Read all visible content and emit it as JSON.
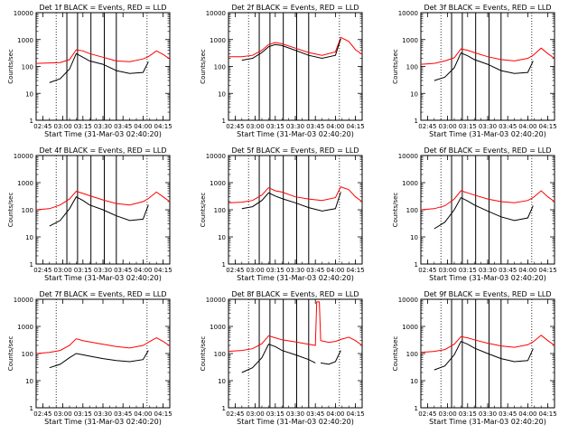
{
  "figure": {
    "background": "#ffffff",
    "events_color": "#000000",
    "lld_color": "#ff0000",
    "xtick_labels": [
      "02:45",
      "03:00",
      "03:15",
      "03:30",
      "03:45",
      "04:00",
      "04:15"
    ],
    "ytick_labels": [
      "1",
      "10",
      "100",
      "1000",
      "10000"
    ],
    "ylabel": "Counts/sec",
    "xlabel": "Start Time (31-Mar-03 02:40:20)"
  },
  "chart_data": [
    {
      "type": "line",
      "title": "Det 1f BLACK = Events, RED = LLD",
      "xlabel": "Start Time (31-Mar-03 02:40:20)",
      "ylabel": "Counts/sec",
      "xlim": [
        "02:40",
        "04:20"
      ],
      "ylim": [
        1,
        10000
      ],
      "yscale": "log",
      "x": [
        "02:40",
        "02:50",
        "02:58",
        "03:05",
        "03:10",
        "03:15",
        "03:20",
        "03:30",
        "03:40",
        "03:50",
        "04:00",
        "04:04",
        "04:10",
        "04:15",
        "04:20"
      ],
      "series": [
        {
          "name": "LLD",
          "values": [
            130,
            135,
            140,
            180,
            420,
            380,
            300,
            220,
            160,
            150,
            190,
            230,
            380,
            280,
            190
          ]
        },
        {
          "name": "Events",
          "values": [
            null,
            25,
            35,
            80,
            300,
            220,
            160,
            120,
            70,
            55,
            60,
            150,
            null,
            null,
            null
          ]
        }
      ],
      "vlines_solid": [
        "03:03",
        "03:11",
        "03:21",
        "03:31",
        "03:40"
      ],
      "vlines_dotted": [
        "02:55",
        "04:03"
      ]
    },
    {
      "type": "line",
      "title": "Det 2f BLACK = Events, RED = LLD",
      "xlabel": "Start Time (31-Mar-03 02:40:20)",
      "ylabel": "Counts/sec",
      "xlim": [
        "02:40",
        "04:20"
      ],
      "ylim": [
        1,
        10000
      ],
      "yscale": "log",
      "x": [
        "02:40",
        "02:50",
        "02:58",
        "03:05",
        "03:10",
        "03:15",
        "03:20",
        "03:30",
        "03:40",
        "03:50",
        "04:00",
        "04:04",
        "04:10",
        "04:15",
        "04:20"
      ],
      "series": [
        {
          "name": "LLD",
          "values": [
            230,
            230,
            260,
            400,
            650,
            780,
            700,
            480,
            330,
            260,
            350,
            1200,
            850,
            420,
            280
          ]
        },
        {
          "name": "Events",
          "values": [
            null,
            170,
            200,
            330,
            540,
            650,
            600,
            400,
            260,
            200,
            260,
            1050,
            null,
            null,
            null
          ]
        }
      ],
      "vlines_solid": [
        "03:03",
        "03:11",
        "03:21",
        "03:31",
        "03:40"
      ],
      "vlines_dotted": [
        "02:55",
        "04:03"
      ]
    },
    {
      "type": "line",
      "title": "Det 3f BLACK = Events, RED = LLD",
      "xlabel": "Start Time (31-Mar-03 02:40:20)",
      "ylabel": "Counts/sec",
      "xlim": [
        "02:40",
        "04:20"
      ],
      "ylim": [
        1,
        10000
      ],
      "yscale": "log",
      "x": [
        "02:40",
        "02:50",
        "02:58",
        "03:05",
        "03:10",
        "03:15",
        "03:20",
        "03:30",
        "03:40",
        "03:50",
        "04:00",
        "04:04",
        "04:10",
        "04:15",
        "04:20"
      ],
      "series": [
        {
          "name": "LLD",
          "values": [
            120,
            130,
            160,
            210,
            450,
            400,
            330,
            230,
            180,
            160,
            200,
            260,
            480,
            300,
            200
          ]
        },
        {
          "name": "Events",
          "values": [
            null,
            30,
            40,
            90,
            320,
            250,
            180,
            120,
            70,
            55,
            60,
            160,
            null,
            null,
            null
          ]
        }
      ],
      "vlines_solid": [
        "03:03",
        "03:11",
        "03:21",
        "03:31",
        "03:40"
      ],
      "vlines_dotted": [
        "02:55",
        "04:03"
      ]
    },
    {
      "type": "line",
      "title": "Det 4f BLACK = Events, RED = LLD",
      "xlabel": "Start Time (31-Mar-03 02:40:20)",
      "ylabel": "Counts/sec",
      "xlim": [
        "02:40",
        "04:20"
      ],
      "ylim": [
        1,
        10000
      ],
      "yscale": "log",
      "x": [
        "02:40",
        "02:50",
        "02:58",
        "03:05",
        "03:10",
        "03:15",
        "03:20",
        "03:30",
        "03:40",
        "03:50",
        "04:00",
        "04:04",
        "04:10",
        "04:15",
        "04:20"
      ],
      "series": [
        {
          "name": "LLD",
          "values": [
            100,
            110,
            150,
            250,
            480,
            400,
            330,
            230,
            170,
            150,
            200,
            260,
            450,
            300,
            200
          ]
        },
        {
          "name": "Events",
          "values": [
            null,
            25,
            40,
            110,
            300,
            220,
            150,
            100,
            60,
            40,
            45,
            150,
            null,
            null,
            null
          ]
        }
      ],
      "vlines_solid": [
        "03:03",
        "03:11",
        "03:21",
        "03:31",
        "03:40"
      ],
      "vlines_dotted": [
        "02:55",
        "04:03"
      ]
    },
    {
      "type": "line",
      "title": "Det 5f BLACK = Events, RED = LLD",
      "xlabel": "Start Time (31-Mar-03 02:40:20)",
      "ylabel": "Counts/sec",
      "xlim": [
        "02:40",
        "04:20"
      ],
      "ylim": [
        1,
        10000
      ],
      "yscale": "log",
      "x": [
        "02:40",
        "02:50",
        "02:58",
        "03:05",
        "03:10",
        "03:15",
        "03:20",
        "03:30",
        "03:40",
        "03:50",
        "04:00",
        "04:04",
        "04:10",
        "04:15",
        "04:20"
      ],
      "series": [
        {
          "name": "LLD",
          "values": [
            180,
            190,
            220,
            350,
            650,
            500,
            450,
            300,
            250,
            220,
            280,
            700,
            550,
            300,
            200
          ]
        },
        {
          "name": "Events",
          "values": [
            null,
            110,
            130,
            220,
            420,
            320,
            260,
            180,
            120,
            90,
            110,
            450,
            null,
            null,
            null
          ]
        }
      ],
      "vlines_solid": [
        "03:03",
        "03:11",
        "03:21",
        "03:31",
        "03:40"
      ],
      "vlines_dotted": [
        "02:55",
        "04:03"
      ]
    },
    {
      "type": "line",
      "title": "Det 6f BLACK = Events, RED = LLD",
      "xlabel": "Start Time (31-Mar-03 02:40:20)",
      "ylabel": "Counts/sec",
      "xlim": [
        "02:40",
        "04:20"
      ],
      "ylim": [
        1,
        10000
      ],
      "yscale": "log",
      "x": [
        "02:40",
        "02:50",
        "02:58",
        "03:05",
        "03:10",
        "03:15",
        "03:20",
        "03:30",
        "03:40",
        "03:50",
        "04:00",
        "04:04",
        "04:10",
        "04:15",
        "04:20"
      ],
      "series": [
        {
          "name": "LLD",
          "values": [
            100,
            110,
            140,
            250,
            500,
            420,
            350,
            250,
            200,
            180,
            220,
            280,
            500,
            300,
            200
          ]
        },
        {
          "name": "Events",
          "values": [
            null,
            20,
            35,
            100,
            280,
            210,
            150,
            90,
            55,
            40,
            50,
            140,
            null,
            null,
            null
          ]
        }
      ],
      "vlines_solid": [
        "03:03",
        "03:11",
        "03:21",
        "03:31",
        "03:40"
      ],
      "vlines_dotted": [
        "02:55",
        "04:03"
      ]
    },
    {
      "type": "line",
      "title": "Det 7f BLACK = Events, RED = LLD",
      "xlabel": "Start Time (31-Mar-03 02:40:20)",
      "ylabel": "Counts/sec",
      "xlim": [
        "02:40",
        "04:20"
      ],
      "ylim": [
        1,
        10000
      ],
      "yscale": "log",
      "x": [
        "02:40",
        "02:50",
        "02:58",
        "03:05",
        "03:10",
        "03:15",
        "03:20",
        "03:30",
        "03:40",
        "03:50",
        "04:00",
        "04:04",
        "04:10",
        "04:15",
        "04:20"
      ],
      "series": [
        {
          "name": "LLD",
          "values": [
            100,
            110,
            130,
            200,
            350,
            300,
            270,
            220,
            180,
            160,
            200,
            260,
            380,
            280,
            190
          ]
        },
        {
          "name": "Events",
          "values": [
            null,
            30,
            40,
            70,
            100,
            90,
            80,
            65,
            55,
            50,
            60,
            130,
            null,
            null,
            null
          ]
        }
      ],
      "vlines_solid": [],
      "vlines_dotted": [
        "02:55",
        "04:03"
      ]
    },
    {
      "type": "line",
      "title": "Det 8f BLACK = Events, RED = LLD",
      "xlabel": "Start Time (31-Mar-03 02:40:20)",
      "ylabel": "Counts/sec",
      "xlim": [
        "02:40",
        "04:20"
      ],
      "ylim": [
        1,
        10000
      ],
      "yscale": "log",
      "x": [
        "02:40",
        "02:50",
        "02:58",
        "03:05",
        "03:10",
        "03:15",
        "03:20",
        "03:30",
        "03:40",
        "03:45",
        "03:46",
        "03:47",
        "03:48",
        "03:49",
        "03:55",
        "04:00",
        "04:04",
        "04:10",
        "04:15",
        "04:20"
      ],
      "series": [
        {
          "name": "LLD",
          "values": [
            120,
            130,
            150,
            230,
            450,
            380,
            320,
            270,
            220,
            200,
            8000,
            8000,
            8000,
            300,
            260,
            280,
            330,
            400,
            300,
            200
          ]
        },
        {
          "name": "Events",
          "values": [
            null,
            20,
            30,
            70,
            220,
            180,
            130,
            90,
            60,
            45,
            null,
            null,
            null,
            45,
            40,
            50,
            130,
            null,
            null,
            null
          ]
        }
      ],
      "vlines_solid": [
        "03:03",
        "03:11",
        "03:21",
        "03:31",
        "03:40"
      ],
      "vlines_dotted": [
        "02:55",
        "04:03"
      ]
    },
    {
      "type": "line",
      "title": "Det 9f BLACK = Events, RED = LLD",
      "xlabel": "Start Time (31-Mar-03 02:40:20)",
      "ylabel": "Counts/sec",
      "xlim": [
        "02:40",
        "04:20"
      ],
      "ylim": [
        1,
        10000
      ],
      "yscale": "log",
      "x": [
        "02:40",
        "02:50",
        "02:58",
        "03:05",
        "03:10",
        "03:15",
        "03:20",
        "03:30",
        "03:40",
        "03:50",
        "04:00",
        "04:04",
        "04:10",
        "04:15",
        "04:20"
      ],
      "series": [
        {
          "name": "LLD",
          "values": [
            110,
            120,
            140,
            220,
            420,
            380,
            320,
            240,
            190,
            170,
            210,
            270,
            470,
            300,
            200
          ]
        },
        {
          "name": "Events",
          "values": [
            null,
            25,
            35,
            90,
            280,
            220,
            160,
            100,
            65,
            50,
            55,
            150,
            null,
            null,
            null
          ]
        }
      ],
      "vlines_solid": [
        "03:03",
        "03:11",
        "03:21",
        "03:31",
        "03:40"
      ],
      "vlines_dotted": [
        "02:55",
        "04:03"
      ]
    }
  ]
}
